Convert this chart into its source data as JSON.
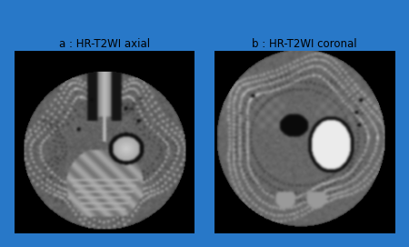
{
  "title_a": "a : HR-T2WI axial",
  "title_b": "b : HR-T2WI coronal",
  "border_color": "#2878c8",
  "background_color": "#ffffff",
  "label_fontsize": 8.5,
  "figsize": [
    4.5,
    2.72
  ],
  "dpi": 100
}
